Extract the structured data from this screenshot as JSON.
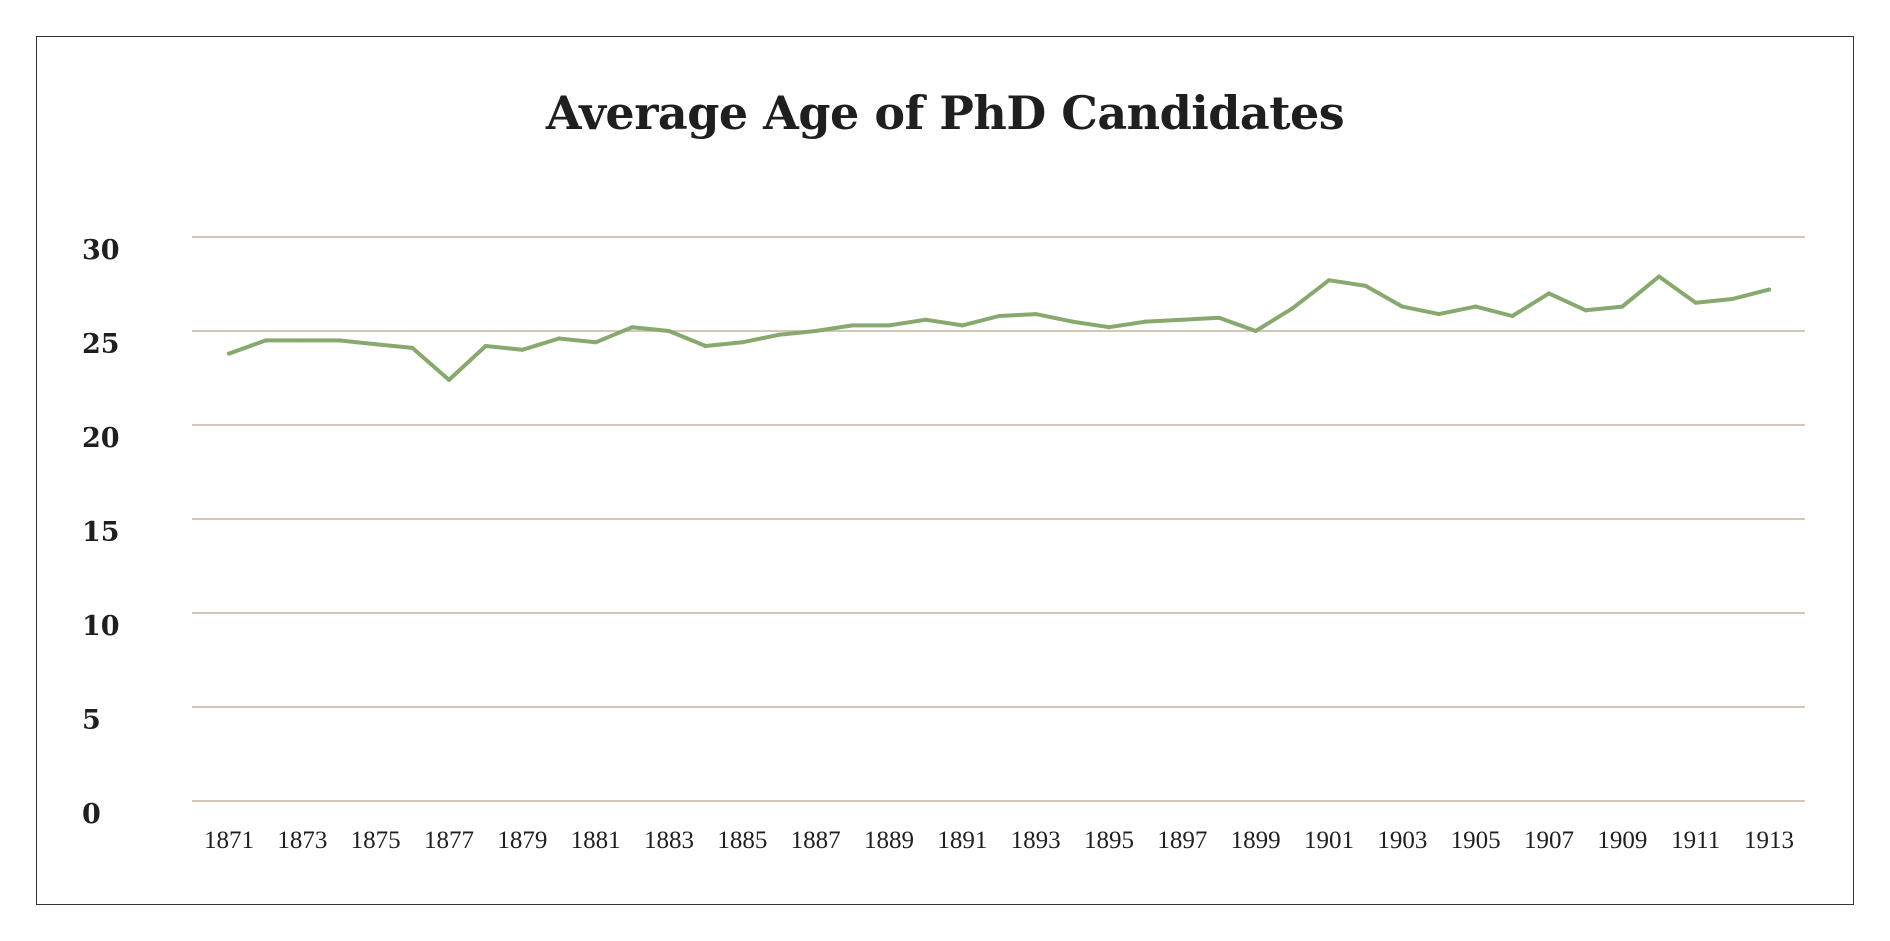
{
  "chart_data": {
    "type": "line",
    "title": "Average Age of PhD Candidates",
    "xlabel": "",
    "ylabel": "",
    "ylim": [
      0,
      30
    ],
    "yticks": [
      0,
      5,
      10,
      15,
      20,
      25,
      30
    ],
    "grid": true,
    "line_color": "#88a96e",
    "grid_color": "#c9b49c",
    "x": [
      1871,
      1872,
      1873,
      1874,
      1875,
      1876,
      1877,
      1878,
      1879,
      1880,
      1881,
      1882,
      1883,
      1884,
      1885,
      1886,
      1887,
      1888,
      1889,
      1890,
      1891,
      1892,
      1893,
      1894,
      1895,
      1896,
      1897,
      1898,
      1899,
      1900,
      1901,
      1902,
      1903,
      1904,
      1905,
      1906,
      1907,
      1908,
      1909,
      1910,
      1911,
      1912,
      1913
    ],
    "xtick_labels": [
      "1871",
      "1873",
      "1875",
      "1877",
      "1879",
      "1881",
      "1883",
      "1885",
      "1887",
      "1889",
      "1891",
      "1893",
      "1895",
      "1897",
      "1899",
      "1901",
      "1903",
      "1905",
      "1907",
      "1909",
      "1911",
      "1913"
    ],
    "series": [
      {
        "values": [
          23.8,
          24.5,
          24.5,
          24.5,
          24.3,
          24.1,
          22.4,
          24.2,
          24.0,
          24.6,
          24.4,
          25.2,
          25.0,
          24.2,
          24.4,
          24.8,
          25.0,
          25.3,
          25.3,
          25.6,
          25.3,
          25.8,
          25.9,
          25.5,
          25.2,
          25.5,
          25.6,
          25.7,
          25.0,
          26.2,
          27.7,
          27.4,
          26.3,
          25.9,
          26.3,
          25.8,
          27.0,
          26.1,
          26.3,
          27.9,
          26.5,
          26.7,
          27.2
        ]
      }
    ]
  }
}
